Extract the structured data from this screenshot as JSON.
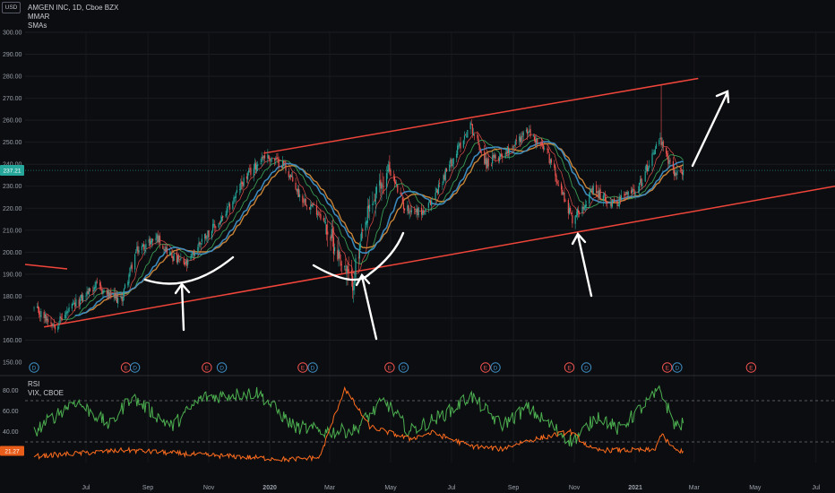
{
  "header": {
    "currency_badge": "USD",
    "symbol_line": "AMGEN INC, 1D, Cboe BZX",
    "indicator_1": "MMAR",
    "indicator_2": "SMAs",
    "rsi_label": "RSI",
    "vix_label": "VIX, CBOE",
    "last_price": "237.21",
    "vix_last": "21.27"
  },
  "colors": {
    "background": "#0c0d10",
    "up_candle": "#26a69a",
    "down_candle": "#ef5350",
    "channel": "#f0453a",
    "ma_fast": "#3aa357",
    "ma_slow": "#d38a3a",
    "ma_blue": "#3d8fc4",
    "rsi": "#4caf50",
    "vix": "#ff6d1f",
    "annotation": "#ffffff"
  },
  "chart_data": [
    {
      "type": "candlestick",
      "title": "AMGEN INC, 1D, Cboe BZX",
      "ylim": [
        145,
        305
      ],
      "y_ticks": [
        "300.00",
        "290.00",
        "280.00",
        "270.00",
        "260.00",
        "250.00",
        "240.00",
        "230.00",
        "220.00",
        "210.00",
        "200.00",
        "190.00",
        "180.00",
        "170.00",
        "160.00",
        "150.00"
      ],
      "x_ticks": [
        "Jul",
        "Sep",
        "Nov",
        "2020",
        "Mar",
        "May",
        "Jul",
        "Sep",
        "Nov",
        "2021",
        "Mar",
        "May",
        "Jul"
      ],
      "last_value": 237.21,
      "anchors": [
        {
          "date": "2019-05-10",
          "close": 174
        },
        {
          "date": "2019-05-31",
          "close": 167
        },
        {
          "date": "2019-06-20",
          "close": 176
        },
        {
          "date": "2019-07-10",
          "close": 185
        },
        {
          "date": "2019-07-25",
          "close": 180
        },
        {
          "date": "2019-08-05",
          "close": 178
        },
        {
          "date": "2019-08-20",
          "close": 200
        },
        {
          "date": "2019-09-10",
          "close": 207
        },
        {
          "date": "2019-09-25",
          "close": 198
        },
        {
          "date": "2019-10-10",
          "close": 194
        },
        {
          "date": "2019-10-25",
          "close": 206
        },
        {
          "date": "2019-11-15",
          "close": 215
        },
        {
          "date": "2019-12-05",
          "close": 232
        },
        {
          "date": "2019-12-26",
          "close": 244
        },
        {
          "date": "2020-01-15",
          "close": 240
        },
        {
          "date": "2020-02-01",
          "close": 225
        },
        {
          "date": "2020-02-20",
          "close": 218
        },
        {
          "date": "2020-03-12",
          "close": 197
        },
        {
          "date": "2020-03-23",
          "close": 185
        },
        {
          "date": "2020-04-10",
          "close": 220
        },
        {
          "date": "2020-04-30",
          "close": 238
        },
        {
          "date": "2020-05-15",
          "close": 220
        },
        {
          "date": "2020-06-05",
          "close": 218
        },
        {
          "date": "2020-06-25",
          "close": 236
        },
        {
          "date": "2020-07-20",
          "close": 258
        },
        {
          "date": "2020-08-05",
          "close": 240
        },
        {
          "date": "2020-08-25",
          "close": 246
        },
        {
          "date": "2020-09-15",
          "close": 255
        },
        {
          "date": "2020-10-05",
          "close": 245
        },
        {
          "date": "2020-10-30",
          "close": 215
        },
        {
          "date": "2020-11-20",
          "close": 228
        },
        {
          "date": "2020-12-10",
          "close": 222
        },
        {
          "date": "2021-01-05",
          "close": 230
        },
        {
          "date": "2021-01-25",
          "close": 252
        },
        {
          "date": "2021-02-02",
          "close": 242
        },
        {
          "date": "2021-02-10",
          "close": 236
        },
        {
          "date": "2021-02-18",
          "close": 237.21
        }
      ],
      "spike": {
        "date": "2021-01-27",
        "high": 276
      },
      "channel_upper": [
        {
          "date": "2019-12-26",
          "value": 245
        },
        {
          "date": "2021-03-05",
          "value": 279
        }
      ],
      "channel_lower": [
        {
          "date": "2019-05-20",
          "value": 166
        },
        {
          "date": "2021-07-20",
          "value": 230
        }
      ],
      "events": [
        {
          "date": "2019-05-10",
          "kind": "D"
        },
        {
          "date": "2019-08-10",
          "kind": "E"
        },
        {
          "date": "2019-08-19",
          "kind": "D"
        },
        {
          "date": "2019-10-30",
          "kind": "E"
        },
        {
          "date": "2019-11-14",
          "kind": "D"
        },
        {
          "date": "2020-02-03",
          "kind": "E"
        },
        {
          "date": "2020-02-13",
          "kind": "D"
        },
        {
          "date": "2020-04-30",
          "kind": "E"
        },
        {
          "date": "2020-05-14",
          "kind": "D"
        },
        {
          "date": "2020-08-04",
          "kind": "E"
        },
        {
          "date": "2020-08-14",
          "kind": "D"
        },
        {
          "date": "2020-10-27",
          "kind": "E"
        },
        {
          "date": "2020-11-13",
          "kind": "D"
        },
        {
          "date": "2021-02-02",
          "kind": "E"
        },
        {
          "date": "2021-02-12",
          "kind": "D"
        },
        {
          "date": "2021-04-27",
          "kind": "E"
        }
      ]
    },
    {
      "type": "line",
      "title": "RSI",
      "ylim": [
        10,
        90
      ],
      "y_ticks": [
        "80.00",
        "60.00",
        "40.00"
      ],
      "series": [
        {
          "name": "RSI",
          "values": [
            {
              "date": "2019-05-10",
              "v": 40
            },
            {
              "date": "2019-06-20",
              "v": 70
            },
            {
              "date": "2019-07-25",
              "v": 46
            },
            {
              "date": "2019-08-15",
              "v": 74
            },
            {
              "date": "2019-09-25",
              "v": 45
            },
            {
              "date": "2019-10-25",
              "v": 73
            },
            {
              "date": "2019-12-20",
              "v": 78
            },
            {
              "date": "2020-01-25",
              "v": 45
            },
            {
              "date": "2020-02-25",
              "v": 40
            },
            {
              "date": "2020-03-25",
              "v": 41
            },
            {
              "date": "2020-04-25",
              "v": 70
            },
            {
              "date": "2020-05-20",
              "v": 40
            },
            {
              "date": "2020-06-30",
              "v": 60
            },
            {
              "date": "2020-07-20",
              "v": 75
            },
            {
              "date": "2020-08-20",
              "v": 46
            },
            {
              "date": "2020-09-15",
              "v": 63
            },
            {
              "date": "2020-10-30",
              "v": 30
            },
            {
              "date": "2020-11-25",
              "v": 56
            },
            {
              "date": "2020-12-15",
              "v": 42
            },
            {
              "date": "2021-01-26",
              "v": 80
            },
            {
              "date": "2021-02-10",
              "v": 46
            },
            {
              "date": "2021-02-18",
              "v": 47
            }
          ]
        },
        {
          "name": "VIX, CBOE",
          "values": [
            {
              "date": "2019-05-10",
              "v": 16
            },
            {
              "date": "2019-08-10",
              "v": 22
            },
            {
              "date": "2019-10-15",
              "v": 18
            },
            {
              "date": "2020-01-20",
              "v": 13
            },
            {
              "date": "2020-02-20",
              "v": 15
            },
            {
              "date": "2020-03-16",
              "v": 82
            },
            {
              "date": "2020-04-10",
              "v": 45
            },
            {
              "date": "2020-05-20",
              "v": 33
            },
            {
              "date": "2020-06-12",
              "v": 39
            },
            {
              "date": "2020-07-20",
              "v": 26
            },
            {
              "date": "2020-08-20",
              "v": 23
            },
            {
              "date": "2020-09-10",
              "v": 30
            },
            {
              "date": "2020-10-28",
              "v": 40
            },
            {
              "date": "2020-11-20",
              "v": 22
            },
            {
              "date": "2021-01-20",
              "v": 22
            },
            {
              "date": "2021-01-27",
              "v": 37
            },
            {
              "date": "2021-02-10",
              "v": 22
            },
            {
              "date": "2021-02-18",
              "v": 21.27
            }
          ]
        }
      ],
      "levels": [
        70,
        30
      ]
    }
  ]
}
